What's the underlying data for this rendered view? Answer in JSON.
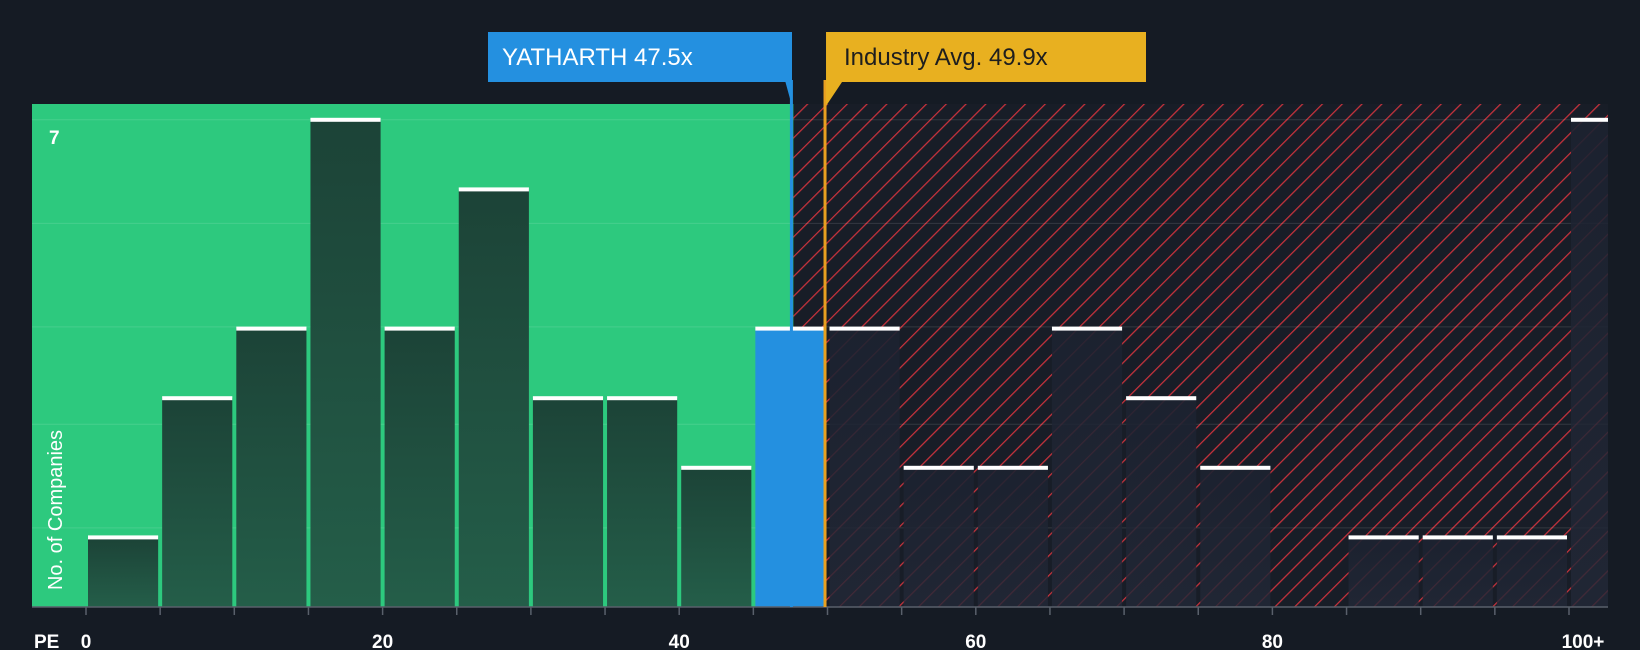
{
  "chart_data": {
    "type": "bar",
    "x_axis_label": "PE",
    "y_axis_label": "No. of Companies",
    "y_max_label": "7",
    "x_tick_labels": [
      "0",
      "20",
      "40",
      "60",
      "80",
      "100+"
    ],
    "bins": [
      {
        "x": 2.5,
        "value": 1
      },
      {
        "x": 7.5,
        "value": 3
      },
      {
        "x": 12.5,
        "value": 4
      },
      {
        "x": 17.5,
        "value": 7
      },
      {
        "x": 22.5,
        "value": 4
      },
      {
        "x": 27.5,
        "value": 6
      },
      {
        "x": 32.5,
        "value": 3
      },
      {
        "x": 37.5,
        "value": 3
      },
      {
        "x": 42.5,
        "value": 2
      },
      {
        "x": 47.5,
        "value": 4
      },
      {
        "x": 52.5,
        "value": 4
      },
      {
        "x": 57.5,
        "value": 2
      },
      {
        "x": 62.5,
        "value": 2
      },
      {
        "x": 67.5,
        "value": 4
      },
      {
        "x": 72.5,
        "value": 3
      },
      {
        "x": 77.5,
        "value": 2
      },
      {
        "x": 82.5,
        "value": 0
      },
      {
        "x": 87.5,
        "value": 1
      },
      {
        "x": 92.5,
        "value": 1
      },
      {
        "x": 97.5,
        "value": 1
      },
      {
        "x": 102.5,
        "value": 7
      }
    ],
    "company": {
      "label": "YATHARTH 47.5x",
      "value": 47.5
    },
    "industry_avg": {
      "label": "Industry Avg. 49.9x",
      "value": 49.9
    },
    "ylim": [
      0,
      7
    ],
    "colors": {
      "background": "#151b24",
      "undervalued_zone": "#2dc97e",
      "overvalued_hatch": "#c8323c",
      "bar_default": "#1e4a3e",
      "bar_company": "#2490e0",
      "company_label_bg": "#2490e0",
      "industry_label_bg": "#e8b020",
      "bar_cap": "#ffffff"
    }
  }
}
